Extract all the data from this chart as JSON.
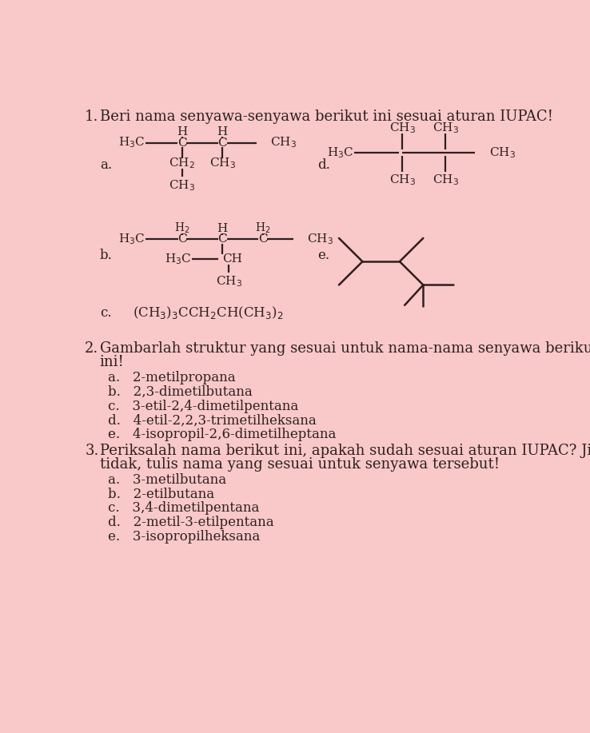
{
  "bg_color": "#F9C8C8",
  "text_color": "#2d2020",
  "section2_items": [
    "a.   2-metilpropana",
    "b.   2,3-dimetilbutana",
    "c.   3-etil-2,4-dimetilpentana",
    "d.   4-etil-2,2,3-trimetilheksana",
    "e.   4-isopropil-2,6-dimetilheptana"
  ],
  "section3_items": [
    "a.   3-metilbutana",
    "b.   2-etilbutana",
    "c.   3,4-dimetilpentana",
    "d.   2-metil-3-etilpentana",
    "e.   3-isopropilheksana"
  ]
}
